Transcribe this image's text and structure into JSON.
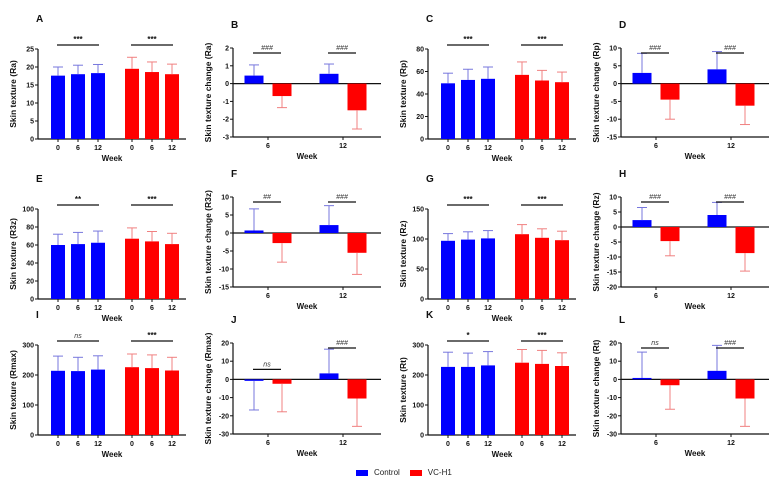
{
  "colors": {
    "control": "#0000ff",
    "vch1": "#ff0000",
    "control_err": "#7777dd",
    "vch1_err": "#f08080"
  },
  "legend": {
    "items": [
      {
        "label": "Control",
        "color": "#0000ff"
      },
      {
        "label": "VC-H1",
        "color": "#ff0000"
      }
    ]
  },
  "chart_data": [
    {
      "panel": "A",
      "type": "bar",
      "kind": "absolute",
      "ylabel": "Skin texture (Ra)",
      "xlabel": "Week",
      "categories": [
        "0",
        "6",
        "12"
      ],
      "ylim": [
        0,
        25
      ],
      "yticks": [
        0,
        5,
        10,
        15,
        20,
        25
      ],
      "series": [
        {
          "name": "Control",
          "values": [
            17.6,
            18.0,
            18.3
          ],
          "errors": [
            2.4,
            2.5,
            2.4
          ],
          "sig": "***"
        },
        {
          "name": "VC-H1",
          "values": [
            19.5,
            18.6,
            18.0
          ],
          "errors": [
            3.2,
            2.8,
            2.8
          ],
          "sig": "***"
        }
      ]
    },
    {
      "panel": "B",
      "type": "bar",
      "kind": "change",
      "ylabel": "Skin texture change (Ra)",
      "xlabel": "Week",
      "categories": [
        "6",
        "12"
      ],
      "ylim": [
        -3,
        2
      ],
      "yticks": [
        -3,
        -2,
        -1,
        0,
        1,
        2
      ],
      "series": [
        {
          "name": "Control",
          "values": [
            0.45,
            0.55
          ],
          "errors": [
            0.6,
            0.55
          ]
        },
        {
          "name": "VC-H1",
          "values": [
            -0.7,
            -1.5
          ],
          "errors": [
            0.65,
            1.05
          ]
        }
      ],
      "sig": [
        "###",
        "###"
      ]
    },
    {
      "panel": "C",
      "type": "bar",
      "kind": "absolute",
      "ylabel": "Skin texture (Rp)",
      "xlabel": "Week",
      "categories": [
        "0",
        "6",
        "12"
      ],
      "ylim": [
        0,
        80
      ],
      "yticks": [
        0,
        20,
        40,
        60,
        80
      ],
      "series": [
        {
          "name": "Control",
          "values": [
            49.5,
            52.5,
            53.5
          ],
          "errors": [
            9,
            9.5,
            10.5
          ],
          "sig": "***"
        },
        {
          "name": "VC-H1",
          "values": [
            57,
            52,
            50.5
          ],
          "errors": [
            11.5,
            9,
            9
          ],
          "sig": "***"
        }
      ]
    },
    {
      "panel": "D",
      "type": "bar",
      "kind": "change",
      "ylabel": "Skin texture change (Rp)",
      "xlabel": "Week",
      "categories": [
        "6",
        "12"
      ],
      "ylim": [
        -15,
        10
      ],
      "yticks": [
        -15,
        -10,
        -5,
        0,
        5,
        10
      ],
      "series": [
        {
          "name": "Control",
          "values": [
            3.0,
            4.0
          ],
          "errors": [
            5.5,
            5.0
          ]
        },
        {
          "name": "VC-H1",
          "values": [
            -4.5,
            -6.2
          ],
          "errors": [
            5.5,
            5.3
          ]
        }
      ],
      "sig": [
        "###",
        "###"
      ]
    },
    {
      "panel": "E",
      "type": "bar",
      "kind": "absolute",
      "ylabel": "Skin texture (R3z)",
      "xlabel": "Week",
      "categories": [
        "0",
        "6",
        "12"
      ],
      "ylim": [
        0,
        100
      ],
      "yticks": [
        0,
        20,
        40,
        60,
        80,
        100
      ],
      "series": [
        {
          "name": "Control",
          "values": [
            60,
            61,
            62.5
          ],
          "errors": [
            12,
            13,
            13
          ],
          "sig": "**"
        },
        {
          "name": "VC-H1",
          "values": [
            67,
            64,
            61
          ],
          "errors": [
            12,
            11,
            12
          ],
          "sig": "***"
        }
      ]
    },
    {
      "panel": "F",
      "type": "bar",
      "kind": "change",
      "ylabel": "Skin texture change (R3z)",
      "xlabel": "Week",
      "categories": [
        "6",
        "12"
      ],
      "ylim": [
        -15,
        10
      ],
      "yticks": [
        -15,
        -10,
        -5,
        0,
        5,
        10
      ],
      "series": [
        {
          "name": "Control",
          "values": [
            0.7,
            2.2
          ],
          "errors": [
            6.0,
            5.4
          ]
        },
        {
          "name": "VC-H1",
          "values": [
            -2.8,
            -5.5
          ],
          "errors": [
            5.3,
            6.0
          ]
        }
      ],
      "sig": [
        "##",
        "###"
      ]
    },
    {
      "panel": "G",
      "type": "bar",
      "kind": "absolute",
      "ylabel": "Skin texture (Rz)",
      "xlabel": "Week",
      "categories": [
        "0",
        "6",
        "12"
      ],
      "ylim": [
        0,
        150
      ],
      "yticks": [
        0,
        50,
        100,
        150
      ],
      "series": [
        {
          "name": "Control",
          "values": [
            97,
            99,
            101
          ],
          "errors": [
            12,
            13,
            13
          ],
          "sig": "***"
        },
        {
          "name": "VC-H1",
          "values": [
            108,
            102,
            98
          ],
          "errors": [
            16,
            15,
            15
          ],
          "sig": "***"
        }
      ]
    },
    {
      "panel": "H",
      "type": "bar",
      "kind": "change",
      "ylabel": "Skin texture change (Rz)",
      "xlabel": "Week",
      "categories": [
        "6",
        "12"
      ],
      "ylim": [
        -20,
        10
      ],
      "yticks": [
        -20,
        -15,
        -10,
        -5,
        0,
        5,
        10
      ],
      "series": [
        {
          "name": "Control",
          "values": [
            2.3,
            4.0
          ],
          "errors": [
            4.2,
            4.2
          ]
        },
        {
          "name": "VC-H1",
          "values": [
            -4.7,
            -8.7
          ],
          "errors": [
            4.9,
            6.0
          ]
        }
      ],
      "sig": [
        "###",
        "###"
      ]
    },
    {
      "panel": "I",
      "type": "bar",
      "kind": "absolute",
      "ylabel": "Skin texture (Rmax)",
      "xlabel": "Week",
      "categories": [
        "0",
        "6",
        "12"
      ],
      "ylim": [
        0,
        300
      ],
      "yticks": [
        0,
        100,
        200,
        300
      ],
      "series": [
        {
          "name": "Control",
          "values": [
            214,
            213,
            218
          ],
          "errors": [
            49,
            46,
            46
          ],
          "sig": "ns"
        },
        {
          "name": "VC-H1",
          "values": [
            226,
            223,
            215
          ],
          "errors": [
            44,
            44,
            44
          ],
          "sig": "***"
        }
      ]
    },
    {
      "panel": "J",
      "type": "bar",
      "kind": "change",
      "ylabel": "Skin texture change (Rmax)",
      "xlabel": "Week",
      "categories": [
        "6",
        "12"
      ],
      "ylim": [
        -30,
        20
      ],
      "yticks": [
        -30,
        -20,
        -10,
        0,
        10,
        20
      ],
      "series": [
        {
          "name": "Control",
          "values": [
            -0.8,
            3.3
          ],
          "errors": [
            16,
            13.3
          ]
        },
        {
          "name": "VC-H1",
          "values": [
            -2.4,
            -10.5
          ],
          "errors": [
            15.4,
            15.3
          ]
        }
      ],
      "sig": [
        "ns",
        "###"
      ]
    },
    {
      "panel": "K",
      "type": "bar",
      "kind": "absolute",
      "ylabel": "Skin texture (Rt)",
      "xlabel": "Week",
      "categories": [
        "0",
        "6",
        "12"
      ],
      "ylim": [
        0,
        300
      ],
      "yticks": [
        0,
        100,
        200,
        300
      ],
      "series": [
        {
          "name": "Control",
          "values": [
            227,
            227,
            232
          ],
          "errors": [
            49,
            46,
            46
          ],
          "sig": "*"
        },
        {
          "name": "VC-H1",
          "values": [
            241,
            237,
            230
          ],
          "errors": [
            44,
            45,
            44
          ],
          "sig": "***"
        }
      ]
    },
    {
      "panel": "L",
      "type": "bar",
      "kind": "change",
      "ylabel": "Skin texture change (Rt)",
      "xlabel": "Week",
      "categories": [
        "6",
        "12"
      ],
      "ylim": [
        -30,
        20
      ],
      "yticks": [
        -30,
        -20,
        -10,
        0,
        10,
        20
      ],
      "series": [
        {
          "name": "Control",
          "values": [
            0.8,
            4.7
          ],
          "errors": [
            14.2,
            14
          ]
        },
        {
          "name": "VC-H1",
          "values": [
            -3.2,
            -10.5
          ],
          "errors": [
            13.2,
            15.3
          ]
        }
      ],
      "sig": [
        "ns",
        "###"
      ]
    }
  ]
}
